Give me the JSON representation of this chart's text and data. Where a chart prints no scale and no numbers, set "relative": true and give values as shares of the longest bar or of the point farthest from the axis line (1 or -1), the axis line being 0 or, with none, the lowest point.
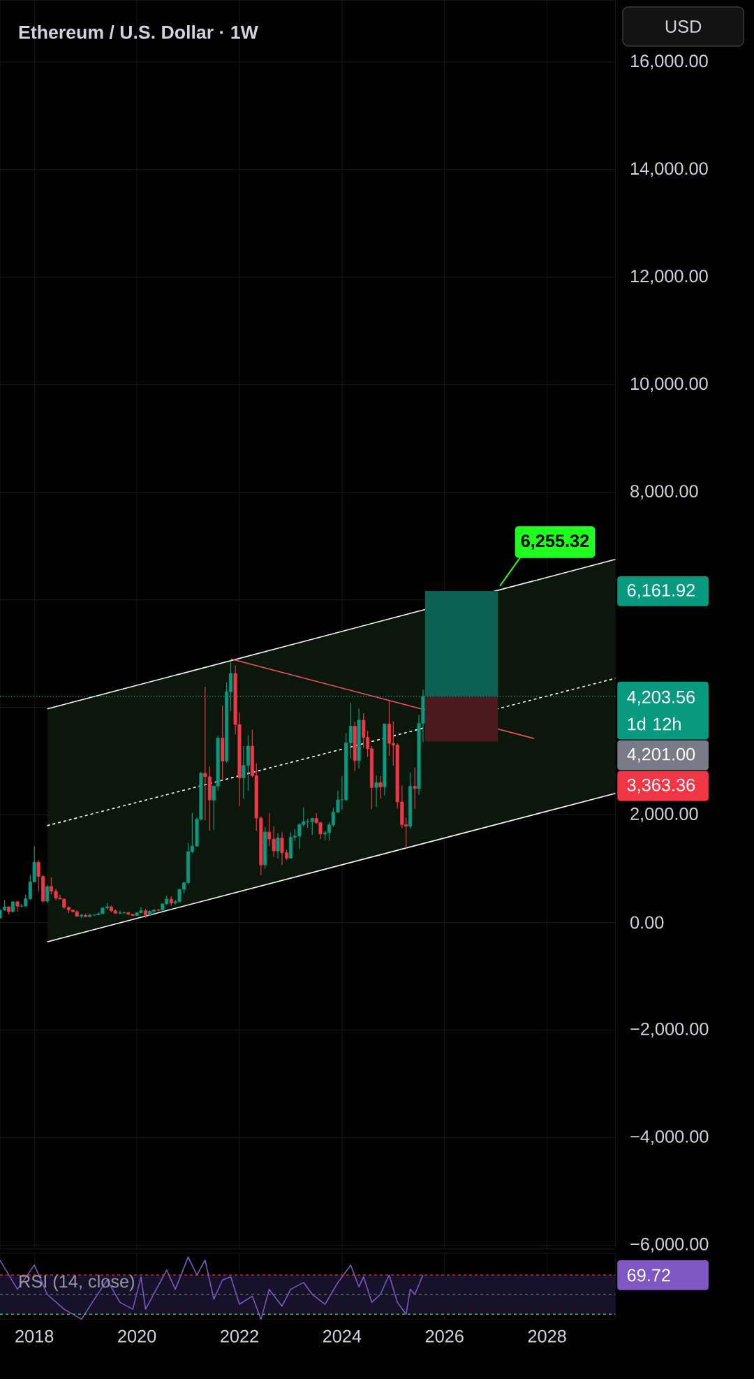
{
  "chart_data": [
    {
      "type": "candlestick",
      "title": "Ethereum / U.S. Dollar · 1W",
      "x": [
        "2017-05",
        "2017-06",
        "2017-07",
        "2017-08",
        "2017-09",
        "2017-10",
        "2017-11",
        "2017-12",
        "2018-01",
        "2018-02",
        "2018-03",
        "2018-04",
        "2018-05",
        "2018-06",
        "2018-07",
        "2018-08",
        "2018-09",
        "2018-10",
        "2018-11",
        "2018-12",
        "2019-01",
        "2019-02",
        "2019-03",
        "2019-04",
        "2019-05",
        "2019-06",
        "2019-07",
        "2019-08",
        "2019-09",
        "2019-10",
        "2019-11",
        "2019-12",
        "2020-01",
        "2020-02",
        "2020-03",
        "2020-04",
        "2020-05",
        "2020-06",
        "2020-07",
        "2020-08",
        "2020-09",
        "2020-10",
        "2020-11",
        "2020-12",
        "2021-01",
        "2021-02",
        "2021-03",
        "2021-04",
        "2021-05",
        "2021-06",
        "2021-07",
        "2021-08",
        "2021-09",
        "2021-10",
        "2021-11",
        "2021-12",
        "2022-01",
        "2022-02",
        "2022-03",
        "2022-04",
        "2022-05",
        "2022-06",
        "2022-07",
        "2022-08",
        "2022-09",
        "2022-10",
        "2022-11",
        "2022-12",
        "2023-01",
        "2023-02",
        "2023-03",
        "2023-04",
        "2023-05",
        "2023-06",
        "2023-07",
        "2023-08",
        "2023-09",
        "2023-10",
        "2023-11",
        "2023-12",
        "2024-01",
        "2024-02",
        "2024-03",
        "2024-04",
        "2024-05",
        "2024-06",
        "2024-07",
        "2024-08",
        "2024-09",
        "2024-10",
        "2024-11",
        "2024-12",
        "2025-01",
        "2025-02",
        "2025-03",
        "2025-04",
        "2025-05",
        "2025-06",
        "2025-07",
        "2025-08"
      ],
      "ohlc": [
        [
          80,
          230,
          80,
          230
        ],
        [
          230,
          420,
          220,
          290
        ],
        [
          290,
          300,
          150,
          200
        ],
        [
          200,
          390,
          190,
          385
        ],
        [
          385,
          395,
          200,
          300
        ],
        [
          300,
          345,
          285,
          305
        ],
        [
          305,
          520,
          290,
          440
        ],
        [
          440,
          880,
          420,
          755
        ],
        [
          755,
          1420,
          750,
          1120
        ],
        [
          1120,
          1160,
          570,
          855
        ],
        [
          855,
          880,
          370,
          395
        ],
        [
          395,
          700,
          360,
          670
        ],
        [
          670,
          835,
          520,
          580
        ],
        [
          580,
          625,
          410,
          455
        ],
        [
          455,
          515,
          430,
          435
        ],
        [
          435,
          440,
          250,
          280
        ],
        [
          280,
          300,
          170,
          230
        ],
        [
          230,
          235,
          190,
          200
        ],
        [
          200,
          225,
          105,
          115
        ],
        [
          115,
          160,
          82,
          135
        ],
        [
          135,
          160,
          100,
          107
        ],
        [
          107,
          165,
          102,
          136
        ],
        [
          136,
          150,
          127,
          141
        ],
        [
          141,
          185,
          140,
          162
        ],
        [
          162,
          285,
          158,
          268
        ],
        [
          268,
          360,
          230,
          290
        ],
        [
          290,
          315,
          190,
          218
        ],
        [
          218,
          240,
          160,
          172
        ],
        [
          172,
          225,
          153,
          180
        ],
        [
          180,
          200,
          155,
          182
        ],
        [
          182,
          195,
          135,
          152
        ],
        [
          152,
          155,
          117,
          130
        ],
        [
          130,
          185,
          127,
          180
        ],
        [
          180,
          290,
          175,
          218
        ],
        [
          218,
          250,
          90,
          133
        ],
        [
          133,
          228,
          130,
          207
        ],
        [
          207,
          245,
          175,
          231
        ],
        [
          231,
          255,
          215,
          226
        ],
        [
          226,
          350,
          222,
          345
        ],
        [
          345,
          490,
          335,
          435
        ],
        [
          435,
          485,
          310,
          360
        ],
        [
          360,
          420,
          335,
          386
        ],
        [
          386,
          620,
          370,
          615
        ],
        [
          615,
          760,
          535,
          737
        ],
        [
          737,
          1475,
          715,
          1315
        ],
        [
          1315,
          2040,
          1290,
          1420
        ],
        [
          1420,
          1950,
          1410,
          1920
        ],
        [
          1920,
          2800,
          1890,
          2775
        ],
        [
          2775,
          4380,
          1900,
          2710
        ],
        [
          2710,
          2900,
          1700,
          2275
        ],
        [
          2275,
          2550,
          1720,
          2535
        ],
        [
          2535,
          3470,
          2450,
          3430
        ],
        [
          3430,
          4030,
          2650,
          3000
        ],
        [
          3000,
          4460,
          2970,
          4290
        ],
        [
          4290,
          4870,
          3930,
          4630
        ],
        [
          4630,
          4780,
          3500,
          3680
        ],
        [
          3680,
          3900,
          2160,
          2690
        ],
        [
          2690,
          3280,
          2300,
          2920
        ],
        [
          2920,
          3480,
          2450,
          3280
        ],
        [
          3280,
          3580,
          2700,
          2730
        ],
        [
          2730,
          2960,
          1700,
          1940
        ],
        [
          1940,
          1970,
          880,
          1070
        ],
        [
          1070,
          1780,
          1000,
          1680
        ],
        [
          1680,
          2030,
          1420,
          1550
        ],
        [
          1550,
          1790,
          1220,
          1330
        ],
        [
          1330,
          1660,
          1190,
          1570
        ],
        [
          1570,
          1680,
          1070,
          1295
        ],
        [
          1295,
          1350,
          1160,
          1195
        ],
        [
          1195,
          1680,
          1190,
          1585
        ],
        [
          1585,
          1740,
          1520,
          1605
        ],
        [
          1605,
          1850,
          1370,
          1820
        ],
        [
          1820,
          2140,
          1785,
          1870
        ],
        [
          1870,
          1930,
          1760,
          1875
        ],
        [
          1875,
          1940,
          1630,
          1935
        ],
        [
          1935,
          2030,
          1835,
          1855
        ],
        [
          1855,
          1870,
          1550,
          1645
        ],
        [
          1645,
          1700,
          1530,
          1670
        ],
        [
          1670,
          1860,
          1520,
          1815
        ],
        [
          1815,
          2130,
          1780,
          2050
        ],
        [
          2050,
          2450,
          2040,
          2280
        ],
        [
          2280,
          2720,
          2100,
          2280
        ],
        [
          2280,
          3520,
          2260,
          3340
        ],
        [
          3340,
          4090,
          3050,
          3650
        ],
        [
          3650,
          3730,
          2810,
          3010
        ],
        [
          3010,
          3980,
          2860,
          3760
        ],
        [
          3760,
          3890,
          3240,
          3440
        ],
        [
          3440,
          3560,
          3080,
          3230
        ],
        [
          3230,
          3280,
          2110,
          2510
        ],
        [
          2510,
          2730,
          2150,
          2600
        ],
        [
          2600,
          2720,
          2300,
          2520
        ],
        [
          2520,
          3700,
          2360,
          3690
        ],
        [
          3690,
          4110,
          3100,
          3330
        ],
        [
          3330,
          3740,
          2920,
          3300
        ],
        [
          3300,
          3330,
          2120,
          2240
        ],
        [
          2240,
          2550,
          1750,
          1820
        ],
        [
          1820,
          1950,
          1380,
          1790
        ],
        [
          1790,
          2790,
          1750,
          2530
        ],
        [
          2530,
          2880,
          2110,
          2490
        ],
        [
          2490,
          3860,
          2370,
          3700
        ],
        [
          3700,
          4330,
          3350,
          4203.56
        ]
      ],
      "series": [
        {
          "type": "line",
          "x": [
            "2018-04",
            "2029-05"
          ],
          "values": [
            1800,
            4540
          ],
          "lower": [
            -360,
            2400
          ],
          "upper": [
            3970,
            6750
          ],
          "color": "#ffffff",
          "line_style": "dashed"
        },
        {
          "type": "line",
          "x": [
            "2018-04",
            "2029-05"
          ],
          "values": [
            3970,
            6750
          ],
          "color": "#ffffff"
        },
        {
          "type": "line",
          "x": [
            "2018-04",
            "2029-05"
          ],
          "values": [
            -360,
            2400
          ],
          "color": "#ffffff"
        },
        {
          "type": "line",
          "x": [
            "2021-11",
            "2027-10"
          ],
          "values": [
            4900,
            3420
          ],
          "color": "#f7525f"
        },
        {
          "type": "bar",
          "x": [
            "2026-05"
          ],
          "base": [
            4203.56
          ],
          "values": [
            1958.36
          ],
          "color": "#0b6152"
        },
        {
          "type": "bar",
          "x": [
            "2026-05"
          ],
          "base": [
            3363.36
          ],
          "values": [
            840.2
          ],
          "color": "#4a1a1e"
        }
      ],
      "ref_lines": [
        {
          "axis": "y",
          "value": 4203.56,
          "color": "#22ab94",
          "line_style": "dotted"
        }
      ],
      "annotations": [
        {
          "text": "6,255.32",
          "x": "2027-02",
          "y": 6255.32
        },
        "6,161.92",
        "4,203.56",
        "1d 12h",
        "4,201.00",
        "3,363.36",
        "USD"
      ],
      "xlim": [
        "2017-05",
        "2029-05"
      ],
      "xticks": [
        "2018",
        "2020",
        "2022",
        "2024",
        "2026",
        "2028"
      ],
      "ylim": [
        -6070,
        17150
      ],
      "yticks": [
        {
          "value": -6000,
          "label": "−6,000.00"
        },
        {
          "value": -4000,
          "label": "−4,000.00"
        },
        {
          "value": -2000,
          "label": "−2,000.00"
        },
        {
          "value": 0,
          "label": "0.00"
        },
        {
          "value": 2000,
          "label": "2,000.00"
        },
        {
          "value": 4000,
          "label": null
        },
        {
          "value": 6000,
          "label": null
        },
        {
          "value": 8000,
          "label": "8,000.00"
        },
        {
          "value": 10000,
          "label": "10,000.00"
        },
        {
          "value": 12000,
          "label": "12,000.00"
        },
        {
          "value": 14000,
          "label": "14,000.00"
        },
        {
          "value": 16000,
          "label": "16,000.00"
        }
      ],
      "grid": true,
      "tick_labels": "y"
    },
    {
      "type": "line",
      "title": "RSI (14, close)",
      "relative": true,
      "x": [
        "2017-05",
        "2017-09",
        "2018-01",
        "2018-04",
        "2018-08",
        "2018-12",
        "2019-03",
        "2019-06",
        "2019-09",
        "2019-12",
        "2020-02",
        "2020-03",
        "2020-08",
        "2020-10",
        "2021-01",
        "2021-03",
        "2021-05",
        "2021-07",
        "2021-09",
        "2021-11",
        "2022-01",
        "2022-04",
        "2022-06",
        "2022-08",
        "2022-11",
        "2023-01",
        "2023-04",
        "2023-06",
        "2023-09",
        "2023-12",
        "2024-03",
        "2024-05",
        "2024-06",
        "2024-08",
        "2024-10",
        "2024-12",
        "2025-02",
        "2025-04",
        "2025-05",
        "2025-06",
        "2025-08"
      ],
      "series": [
        {
          "color": "#7e57c2",
          "values": [
            0.95,
            0.48,
            0.87,
            0.4,
            0.16,
            0,
            0.32,
            0.63,
            0.27,
            0.16,
            0.68,
            0.16,
            0.79,
            0.48,
            1,
            0.71,
            0.95,
            0.32,
            0.63,
            0.68,
            0.24,
            0.37,
            0,
            0.48,
            0.21,
            0.48,
            0.59,
            0.4,
            0.24,
            0.59,
            0.87,
            0.52,
            0.68,
            0.27,
            0.4,
            0.71,
            0.27,
            0.08,
            0.48,
            0.4,
            0.71
          ]
        }
      ],
      "ref_lines": [
        {
          "axis": "y",
          "value": 0.71,
          "color": "#f23645",
          "line_style": "dashed"
        },
        {
          "axis": "y",
          "value": 0.4,
          "color": "#5d606b",
          "line_style": "dashed"
        },
        {
          "axis": "y",
          "value": 0.08,
          "color": "#22c55e",
          "line_style": "dashed"
        }
      ],
      "bands": [
        {
          "axis": "y",
          "from": 0.08,
          "to": 0.71,
          "color": "#15122a"
        }
      ],
      "annotations": [
        "69.72"
      ],
      "xlim": [
        "2017-05",
        "2029-05"
      ],
      "xticks": [
        "2018",
        "2020",
        "2022",
        "2024",
        "2026",
        "2028"
      ],
      "grid": "x",
      "tick_labels": "x"
    }
  ]
}
